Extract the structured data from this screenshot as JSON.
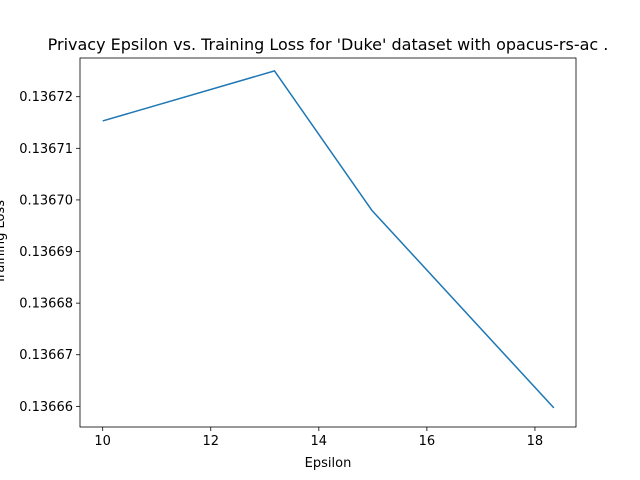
{
  "chart_data": {
    "type": "line",
    "title": "Privacy Epsilon vs. Training Loss for 'Duke' dataset with opacus-rs-ac .",
    "xlabel": "Epsilon",
    "ylabel": "Training Loss",
    "xlim": [
      9.58,
      18.76
    ],
    "ylim": [
      0.136656,
      0.1367275
    ],
    "x_ticks": [
      10,
      12,
      14,
      16,
      18
    ],
    "x_tick_labels": [
      "10",
      "12",
      "14",
      "16",
      "18"
    ],
    "y_ticks": [
      0.13666,
      0.13667,
      0.13668,
      0.13669,
      0.1367,
      0.13671,
      0.13672
    ],
    "y_tick_labels": [
      "0.13666",
      "0.13667",
      "0.13668",
      "0.13669",
      "0.13670",
      "0.13671",
      "0.13672"
    ],
    "grid": false,
    "series": [
      {
        "color": "#1f77b4",
        "x": [
          10.0,
          13.18,
          14.98,
          18.35
        ],
        "y": [
          0.1367153,
          0.136725,
          0.136698,
          0.1366597
        ]
      }
    ]
  }
}
